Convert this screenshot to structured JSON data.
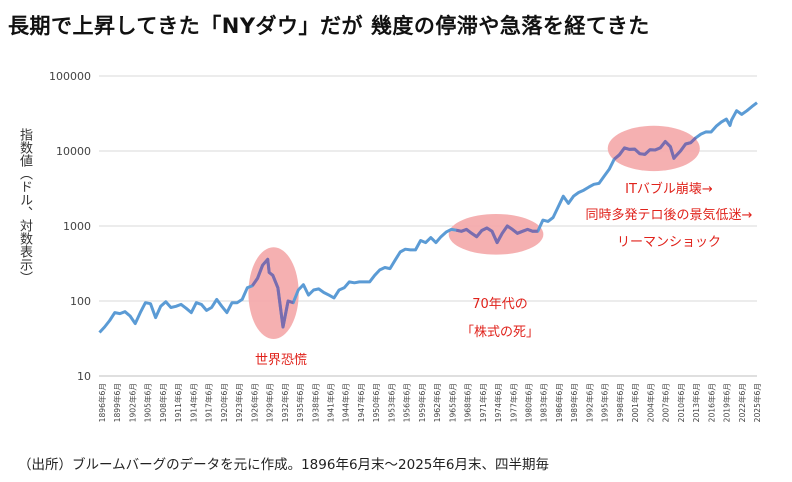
{
  "page": {
    "title": "長期で上昇してきた「NYダウ」だが 幾度の停滞や急落を経てきた",
    "source_note": "（出所）ブルームバーグのデータを元に作成。1896年6月末～2025年6月末、四半期毎"
  },
  "chart_data": {
    "type": "line",
    "title": "長期で上昇してきた「NYダウ」だが 幾度の停滞や急落を経てきた",
    "ylabel": "指数値（ドル、対数表示）",
    "xlabel": "",
    "yscale": "log",
    "ylim": [
      10,
      100000
    ],
    "yticks": [
      10,
      100,
      1000,
      10000,
      100000
    ],
    "ytick_labels": [
      "10",
      "100",
      "1000",
      "10000",
      "100000"
    ],
    "xlim": [
      1896.4,
      2025.5
    ],
    "xtick_labels": [
      "1896年6月",
      "1899年6月",
      "1902年6月",
      "1905年6月",
      "1908年6月",
      "1911年6月",
      "1914年6月",
      "1917年6月",
      "1920年6月",
      "1923年6月",
      "1926年6月",
      "1929年6月",
      "1932年6月",
      "1935年6月",
      "1938年6月",
      "1941年6月",
      "1944年6月",
      "1947年6月",
      "1950年6月",
      "1953年6月",
      "1956年6月",
      "1959年6月",
      "1962年6月",
      "1965年6月",
      "1968年6月",
      "1971年6月",
      "1974年6月",
      "1977年6月",
      "1980年6月",
      "1983年6月",
      "1986年6月",
      "1989年6月",
      "1992年6月",
      "1995年6月",
      "1998年6月",
      "2001年6月",
      "2004年6月",
      "2007年6月",
      "2010年6月",
      "2013年6月",
      "2016年6月",
      "2019年6月",
      "2022年6月",
      "2025年6月"
    ],
    "grid": "horizontal",
    "line_color": "#5b9bd5",
    "highlight_line_color": "#7b6cae",
    "highlight_fill": "#f4a7a8",
    "series": [
      {
        "name": "",
        "x": [
          1896.5,
          1897.5,
          1898.5,
          1899.5,
          1900.5,
          1901.5,
          1902.5,
          1903.5,
          1904.5,
          1905.5,
          1906.5,
          1907.5,
          1908.5,
          1909.5,
          1910.5,
          1911.5,
          1912.5,
          1913.5,
          1914.5,
          1915.5,
          1916.5,
          1917.5,
          1918.5,
          1919.5,
          1920.5,
          1921.5,
          1922.5,
          1923.5,
          1924.5,
          1925.5,
          1926.5,
          1927.5,
          1928.5,
          1929.5,
          1929.8,
          1930.5,
          1931.5,
          1932.5,
          1933.5,
          1934.5,
          1935.5,
          1936.5,
          1937.5,
          1938.5,
          1939.5,
          1940.5,
          1941.5,
          1942.5,
          1943.5,
          1944.5,
          1945.5,
          1946.5,
          1947.5,
          1948.5,
          1949.5,
          1950.5,
          1951.5,
          1952.5,
          1953.5,
          1954.5,
          1955.5,
          1956.5,
          1957.5,
          1958.5,
          1959.5,
          1960.5,
          1961.5,
          1962.5,
          1963.5,
          1964.5,
          1965.5,
          1966.5,
          1967.5,
          1968.5,
          1969.5,
          1970.5,
          1971.5,
          1972.5,
          1973.5,
          1974.5,
          1975.5,
          1976.5,
          1977.5,
          1978.5,
          1979.5,
          1980.5,
          1981.5,
          1982.5,
          1983.5,
          1984.5,
          1985.5,
          1986.5,
          1987.5,
          1988.5,
          1989.5,
          1990.5,
          1991.5,
          1992.5,
          1993.5,
          1994.5,
          1995.5,
          1996.5,
          1997.5,
          1998.5,
          1999.5,
          2000.5,
          2001.5,
          2002.5,
          2003.5,
          2004.5,
          2005.5,
          2006.5,
          2007.5,
          2008.5,
          2009.2,
          2009.5,
          2010.5,
          2011.5,
          2012.5,
          2013.5,
          2014.5,
          2015.5,
          2016.5,
          2017.5,
          2018.5,
          2019.5,
          2020.2,
          2020.5,
          2021.5,
          2022.5,
          2023.5,
          2024.5,
          2025.5
        ],
        "values": [
          38,
          45,
          55,
          70,
          68,
          72,
          63,
          50,
          70,
          95,
          92,
          60,
          85,
          98,
          82,
          85,
          90,
          80,
          70,
          95,
          90,
          75,
          82,
          105,
          85,
          70,
          95,
          95,
          105,
          150,
          160,
          200,
          300,
          360,
          240,
          220,
          150,
          45,
          100,
          95,
          140,
          165,
          120,
          140,
          145,
          130,
          120,
          110,
          140,
          150,
          180,
          175,
          180,
          180,
          180,
          220,
          260,
          280,
          270,
          350,
          450,
          490,
          480,
          480,
          640,
          600,
          700,
          600,
          720,
          830,
          900,
          880,
          850,
          900,
          800,
          720,
          870,
          940,
          850,
          600,
          800,
          1000,
          900,
          800,
          850,
          900,
          850,
          850,
          1200,
          1150,
          1300,
          1800,
          2500,
          2000,
          2500,
          2800,
          3000,
          3300,
          3600,
          3700,
          4600,
          5700,
          7800,
          8900,
          11000,
          10500,
          10600,
          9200,
          9000,
          10400,
          10300,
          11000,
          13400,
          11400,
          8000,
          8500,
          10000,
          12400,
          12900,
          15000,
          16800,
          18000,
          17900,
          21400,
          24300,
          26600,
          21900,
          25800,
          34500,
          30800,
          34400,
          39100,
          44100
        ]
      }
    ],
    "highlights": [
      {
        "label": "世界恐慌",
        "x_range": [
          1926.5,
          1934.8
        ]
      },
      {
        "label": "70年代の「株式の死」",
        "x_range": [
          1965.8,
          1982.8
        ]
      },
      {
        "label": "ITバブル崩壊→同時多発テロ後の景気低迷→リーマンショック",
        "x_range": [
          1997.0,
          2013.5
        ]
      }
    ],
    "annotations": {
      "great_depression": "世界恐慌",
      "seventies_line1": "70年代の",
      "seventies_line2": "「株式の死」",
      "dotcom_line1": "ITバブル崩壊→",
      "dotcom_line2": "同時多発テロ後の景気低迷→",
      "dotcom_line3": "リーマンショック"
    }
  }
}
